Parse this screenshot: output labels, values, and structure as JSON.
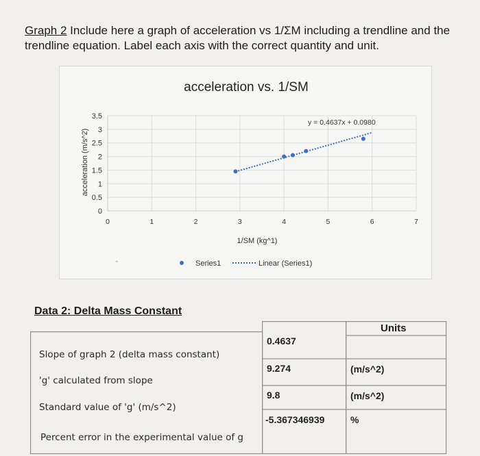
{
  "heading": {
    "graph_label": "Graph 2",
    "text": " Include here a graph of acceleration vs 1/ΣM including a trendline and the trendline equation. Label each axis with the correct quantity and unit."
  },
  "chart_data": {
    "type": "scatter",
    "title": "acceleration vs. 1/SM",
    "xlabel": "1/SM (kg^1)",
    "ylabel": "acceleration (m/s^2)",
    "xlim": [
      0,
      7
    ],
    "ylim": [
      0,
      3.5
    ],
    "x_ticks": [
      "0",
      "1",
      "2",
      "3",
      "4",
      "5",
      "6",
      "7"
    ],
    "y_ticks": [
      "0",
      "0.5",
      "1",
      "1.5",
      "2",
      "2.5",
      "3",
      "3.5"
    ],
    "grid": true,
    "series": [
      {
        "name": "Series1",
        "x": [
          2.9,
          4.0,
          4.2,
          4.5,
          5.8
        ],
        "y": [
          1.45,
          2.0,
          2.05,
          2.2,
          2.65
        ],
        "color": "#3f6fc1"
      }
    ],
    "trendline": {
      "name": "Linear (Series1)",
      "equation": "y = 0.4637x + 0.0980",
      "slope": 0.4637,
      "intercept": 0.098,
      "x_range": [
        2.9,
        6.0
      ],
      "color": "#3f6fc1"
    },
    "legend": {
      "placement": "bottom",
      "series_label": "Series1",
      "trend_label": "Linear (Series1)"
    },
    "stray_mark": "\""
  },
  "data2": {
    "title": "Data 2: Delta Mass Constant",
    "units_header": "Units",
    "rows": [
      {
        "label": "Slope of graph 2 (delta mass constant)",
        "value": "0.4637",
        "unit": ""
      },
      {
        "label": "'g' calculated from slope",
        "value": "9.274",
        "unit": "(m/s^2)"
      },
      {
        "label": "Standard value of 'g' (m/s^2)",
        "value": "9.8",
        "unit": "(m/s^2)"
      },
      {
        "label": "Percent error in the experimental value of g",
        "value": "-5.367346939",
        "unit": "%"
      }
    ]
  }
}
